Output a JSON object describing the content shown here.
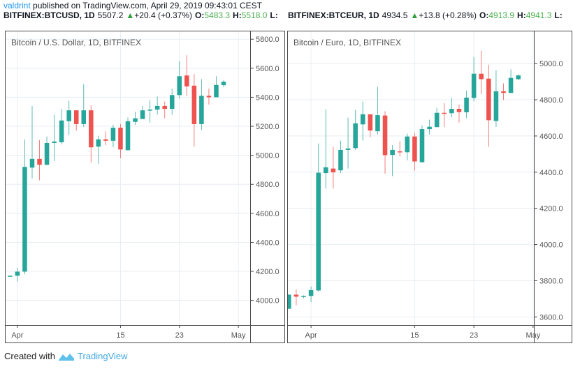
{
  "header": {
    "user": "valdrint",
    "published": " published on TradingView.com, April 29, 2019 09:43:01 CEST"
  },
  "legends": [
    {
      "symbol": "BITFINEX:BTCUSD, 1D",
      "last": "5507.2",
      "change": "+20.4 (+0.37%)",
      "o_label": "O:",
      "o": "5483.3",
      "h_label": "H:",
      "h": "5518.0",
      "l_label": "L:"
    },
    {
      "symbol": "BITFINEX:BTCEUR, 1D",
      "last": "4934.5",
      "change": "+13.8 (+0.28%)",
      "o_label": "O:",
      "o": "4913.9",
      "h_label": "H:",
      "h": "4941.3",
      "l_label": "L:"
    }
  ],
  "footer": {
    "created_with": "Created with",
    "brand": "TradingView"
  },
  "colors": {
    "up": "#26a69a",
    "down": "#ef5350",
    "grid": "#e8eef3",
    "axis": "#4a4a4a",
    "link": "#2196f3"
  },
  "chart_data": [
    {
      "type": "candlestick",
      "title": "Bitcoin / U.S. Dollar, 1D, BITFINEX",
      "ylim": [
        3830,
        5854
      ],
      "xlim": [
        "2019-03-30T09:30",
        "2019-05-02T14:30"
      ],
      "yticks": [
        "4000.0",
        "4200.0",
        "4400.0",
        "4600.0",
        "4800.0",
        "5000.0",
        "5200.0",
        "5400.0",
        "5600.0",
        "5800.0"
      ],
      "xticks": [
        {
          "date": "2019-04-01",
          "label": "Apr"
        },
        {
          "date": "2019-04-15",
          "label": "15"
        },
        {
          "date": "2019-04-23",
          "label": "23"
        },
        {
          "date": "2019-05-01",
          "label": "May"
        }
      ],
      "grid": true,
      "columns": [
        "date",
        "open",
        "high",
        "low",
        "close"
      ],
      "candles": [
        [
          "2019-03-31",
          4168,
          4172,
          4166,
          4170
        ],
        [
          "2019-04-01",
          4170,
          4225,
          4130,
          4198
        ],
        [
          "2019-04-02",
          4198,
          5110,
          4180,
          4920
        ],
        [
          "2019-04-03",
          4915,
          5340,
          4840,
          4975
        ],
        [
          "2019-04-04",
          4975,
          5105,
          4828,
          4935
        ],
        [
          "2019-04-05",
          4935,
          5130,
          4930,
          5085
        ],
        [
          "2019-04-06",
          5085,
          5280,
          4960,
          5095
        ],
        [
          "2019-04-07",
          5090,
          5320,
          5075,
          5240
        ],
        [
          "2019-04-08",
          5235,
          5375,
          5140,
          5310
        ],
        [
          "2019-04-09",
          5310,
          5310,
          5170,
          5215
        ],
        [
          "2019-04-10",
          5215,
          5490,
          5195,
          5310
        ],
        [
          "2019-04-11",
          5310,
          5345,
          4950,
          5055
        ],
        [
          "2019-04-12",
          5060,
          5135,
          4940,
          5110
        ],
        [
          "2019-04-13",
          5110,
          5165,
          5070,
          5100
        ],
        [
          "2019-04-14",
          5100,
          5210,
          5055,
          5190
        ],
        [
          "2019-04-15",
          5190,
          5215,
          4980,
          5040
        ],
        [
          "2019-04-16",
          5035,
          5260,
          5035,
          5235
        ],
        [
          "2019-04-17",
          5230,
          5300,
          5210,
          5255
        ],
        [
          "2019-04-18",
          5250,
          5340,
          5250,
          5310
        ],
        [
          "2019-04-19",
          5310,
          5380,
          5225,
          5315
        ],
        [
          "2019-04-20",
          5315,
          5405,
          5280,
          5340
        ],
        [
          "2019-04-21",
          5340,
          5370,
          5255,
          5320
        ],
        [
          "2019-04-22",
          5320,
          5460,
          5280,
          5415
        ],
        [
          "2019-04-23",
          5415,
          5650,
          5390,
          5545
        ],
        [
          "2019-04-24",
          5550,
          5690,
          5410,
          5475
        ],
        [
          "2019-04-25",
          5480,
          5560,
          5060,
          5215
        ],
        [
          "2019-04-26",
          5215,
          5525,
          5175,
          5410
        ],
        [
          "2019-04-27",
          5410,
          5460,
          5350,
          5400
        ],
        [
          "2019-04-28",
          5400,
          5545,
          5400,
          5485
        ],
        [
          "2019-04-29",
          5483.3,
          5518.0,
          5470,
          5507.2
        ]
      ]
    },
    {
      "type": "candlestick",
      "title": "Bitcoin / Euro, 1D, BITFINEX",
      "ylim": [
        3555,
        5178
      ],
      "xlim": [
        "2019-03-28T21:00",
        "2019-05-01T02:30"
      ],
      "yticks": [
        "3600.0",
        "3800.0",
        "4000.0",
        "4200.0",
        "4400.0",
        "4600.0",
        "4800.0",
        "5000.0"
      ],
      "xticks": [
        {
          "date": "2019-04-01",
          "label": "Apr"
        },
        {
          "date": "2019-04-15",
          "label": "15"
        },
        {
          "date": "2019-04-23",
          "label": "23"
        },
        {
          "date": "2019-05-01",
          "label": "May"
        }
      ],
      "grid": true,
      "columns": [
        "date",
        "open",
        "high",
        "low",
        "close"
      ],
      "candles": [
        [
          "2019-03-29",
          3645,
          3725,
          3645,
          3723
        ],
        [
          "2019-03-30",
          3723,
          3752,
          3665,
          3712
        ],
        [
          "2019-03-31",
          3712,
          3719,
          3703,
          3716
        ],
        [
          "2019-04-01",
          3716,
          3768,
          3681,
          3748
        ],
        [
          "2019-04-02",
          3746,
          4559,
          3740,
          4397
        ],
        [
          "2019-04-03",
          4395,
          4747,
          4309,
          4427
        ],
        [
          "2019-04-04",
          4420,
          4540,
          4309,
          4399
        ],
        [
          "2019-04-05",
          4410,
          4574,
          4395,
          4523
        ],
        [
          "2019-04-06",
          4523,
          4701,
          4420,
          4531
        ],
        [
          "2019-04-07",
          4533,
          4744,
          4523,
          4670
        ],
        [
          "2019-04-08",
          4664,
          4790,
          4574,
          4720
        ],
        [
          "2019-04-09",
          4720,
          4720,
          4594,
          4630
        ],
        [
          "2019-04-10",
          4626,
          4872,
          4609,
          4715
        ],
        [
          "2019-04-11",
          4713,
          4737,
          4392,
          4494
        ],
        [
          "2019-04-12",
          4495,
          4549,
          4378,
          4523
        ],
        [
          "2019-04-13",
          4515,
          4570,
          4487,
          4510
        ],
        [
          "2019-04-14",
          4510,
          4613,
          4465,
          4597
        ],
        [
          "2019-04-15",
          4597,
          4618,
          4408,
          4459
        ],
        [
          "2019-04-16",
          4455,
          4659,
          4453,
          4638
        ],
        [
          "2019-04-17",
          4638,
          4690,
          4609,
          4651
        ],
        [
          "2019-04-18",
          4649,
          4756,
          4649,
          4728
        ],
        [
          "2019-04-19",
          4728,
          4782,
          4649,
          4726
        ],
        [
          "2019-04-20",
          4726,
          4809,
          4703,
          4750
        ],
        [
          "2019-04-21",
          4750,
          4774,
          4674,
          4732
        ],
        [
          "2019-04-22",
          4731,
          4851,
          4699,
          4812
        ],
        [
          "2019-04-23",
          4810,
          5036,
          4792,
          4944
        ],
        [
          "2019-04-24",
          4944,
          5072,
          4831,
          4914
        ],
        [
          "2019-04-25",
          4917,
          4994,
          4540,
          4687
        ],
        [
          "2019-04-26",
          4683,
          4963,
          4649,
          4847
        ],
        [
          "2019-04-27",
          4847,
          4891,
          4799,
          4838
        ],
        [
          "2019-04-28",
          4838,
          4968,
          4837,
          4921
        ],
        [
          "2019-04-29",
          4913.9,
          4941.3,
          4908,
          4934.5
        ]
      ]
    }
  ]
}
